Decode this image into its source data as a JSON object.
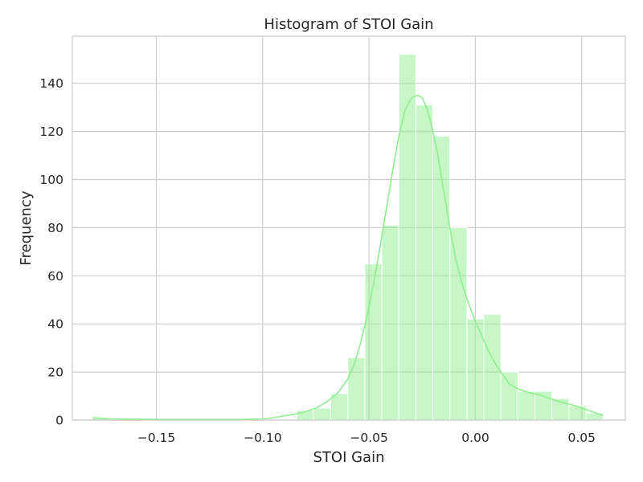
{
  "chart_data": {
    "type": "bar",
    "subtype": "histogram-with-kde",
    "title": "Histogram of STOI Gain",
    "xlabel": "STOI Gain",
    "ylabel": "Frequency",
    "xlim": [
      -0.1895,
      0.0705
    ],
    "ylim": [
      0,
      159.6
    ],
    "x_ticks": [
      {
        "value": -0.15,
        "label": "−0.15"
      },
      {
        "value": -0.1,
        "label": "−0.10"
      },
      {
        "value": -0.05,
        "label": "−0.05"
      },
      {
        "value": 0.0,
        "label": "0.00"
      },
      {
        "value": 0.05,
        "label": "0.05"
      }
    ],
    "y_ticks": [
      0,
      20,
      40,
      60,
      80,
      100,
      120,
      140
    ],
    "grid": true,
    "bar_color": "#90ee90",
    "bar_opacity": 0.5,
    "line_color": "#90ee90",
    "frame_color": "#cccccc",
    "grid_color": "#cccccc",
    "bins": [
      {
        "x0": -0.18,
        "x1": -0.172,
        "count": 1
      },
      {
        "x0": -0.172,
        "x1": -0.164,
        "count": 0
      },
      {
        "x0": -0.164,
        "x1": -0.156,
        "count": 0
      },
      {
        "x0": -0.156,
        "x1": -0.148,
        "count": 0
      },
      {
        "x0": -0.148,
        "x1": -0.14,
        "count": 0
      },
      {
        "x0": -0.14,
        "x1": -0.132,
        "count": 0
      },
      {
        "x0": -0.132,
        "x1": -0.124,
        "count": 0
      },
      {
        "x0": -0.124,
        "x1": -0.116,
        "count": 0
      },
      {
        "x0": -0.116,
        "x1": -0.108,
        "count": 0
      },
      {
        "x0": -0.108,
        "x1": -0.1,
        "count": 0
      },
      {
        "x0": -0.1,
        "x1": -0.092,
        "count": 0
      },
      {
        "x0": -0.092,
        "x1": -0.084,
        "count": 0
      },
      {
        "x0": -0.084,
        "x1": -0.076,
        "count": 4
      },
      {
        "x0": -0.076,
        "x1": -0.068,
        "count": 5
      },
      {
        "x0": -0.068,
        "x1": -0.06,
        "count": 11
      },
      {
        "x0": -0.06,
        "x1": -0.052,
        "count": 26
      },
      {
        "x0": -0.052,
        "x1": -0.044,
        "count": 65
      },
      {
        "x0": -0.044,
        "x1": -0.036,
        "count": 81
      },
      {
        "x0": -0.036,
        "x1": -0.028,
        "count": 152
      },
      {
        "x0": -0.028,
        "x1": -0.02,
        "count": 131
      },
      {
        "x0": -0.02,
        "x1": -0.012,
        "count": 118
      },
      {
        "x0": -0.012,
        "x1": -0.004,
        "count": 80
      },
      {
        "x0": -0.004,
        "x1": 0.004,
        "count": 42
      },
      {
        "x0": 0.004,
        "x1": 0.012,
        "count": 44
      },
      {
        "x0": 0.012,
        "x1": 0.02,
        "count": 20
      },
      {
        "x0": 0.02,
        "x1": 0.028,
        "count": 12
      },
      {
        "x0": 0.028,
        "x1": 0.036,
        "count": 12
      },
      {
        "x0": 0.036,
        "x1": 0.044,
        "count": 9
      },
      {
        "x0": 0.044,
        "x1": 0.052,
        "count": 6
      },
      {
        "x0": 0.052,
        "x1": 0.06,
        "count": 3
      }
    ],
    "kde": {
      "x": [
        -0.18,
        -0.17,
        -0.16,
        -0.15,
        -0.14,
        -0.13,
        -0.12,
        -0.11,
        -0.1,
        -0.095,
        -0.09,
        -0.085,
        -0.08,
        -0.075,
        -0.07,
        -0.065,
        -0.06,
        -0.057,
        -0.054,
        -0.051,
        -0.048,
        -0.045,
        -0.042,
        -0.039,
        -0.036,
        -0.033,
        -0.03,
        -0.027,
        -0.025,
        -0.023,
        -0.021,
        -0.018,
        -0.015,
        -0.012,
        -0.009,
        -0.006,
        -0.003,
        0.0,
        0.003,
        0.006,
        0.009,
        0.012,
        0.016,
        0.02,
        0.025,
        0.03,
        0.035,
        0.04,
        0.045,
        0.05,
        0.055,
        0.06
      ],
      "y": [
        1,
        0.5,
        0.4,
        0.3,
        0.3,
        0.3,
        0.3,
        0.3,
        0.5,
        1,
        1.8,
        2.5,
        3.5,
        5,
        7.5,
        11,
        17,
        23,
        32,
        43,
        56,
        71,
        87,
        103,
        118,
        129,
        134,
        135,
        134,
        130,
        124,
        112,
        96,
        80,
        66,
        56,
        48,
        41,
        35,
        29,
        24,
        20,
        15,
        13,
        11.5,
        10.5,
        9,
        7.5,
        6.5,
        5,
        3.5,
        2
      ]
    }
  }
}
